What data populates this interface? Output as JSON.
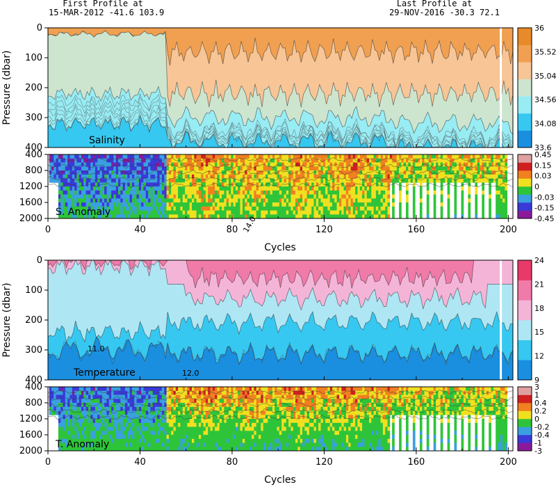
{
  "header": {
    "first_label": "First Profile at",
    "first_value": "15-MAR-2012   -41.6  103.9",
    "last_label": "Last Profile at",
    "last_value": "29-NOV-2016   -30.3   72.1"
  },
  "chart_data": [
    {
      "type": "heatmap",
      "title": "Salinity",
      "ylabel": "Pressure (dbar)",
      "xlim": [
        0,
        202
      ],
      "ylim": [
        400,
        0
      ],
      "yticks": [
        "0",
        "100",
        "200",
        "300",
        "400"
      ],
      "colorbar_ticks": [
        "36",
        "35.52",
        "35.04",
        "34.56",
        "34.08",
        "33.6"
      ],
      "colorbar_colors": [
        "#1a8fe0",
        "#36c8f0",
        "#98ecf4",
        "#cde5cf",
        "#f7c596",
        "#f0a050",
        "#e98a2a"
      ],
      "x_breaks": [
        0,
        52,
        55,
        80,
        140,
        175,
        202
      ],
      "segments": [
        {
          "x": [
            0,
            52
          ],
          "levels": [
            0.35,
            0.25,
            0.12
          ]
        },
        {
          "x": [
            52,
            80
          ],
          "levels": [
            0.78,
            0.7,
            0.62
          ]
        },
        {
          "x": [
            80,
            140
          ],
          "levels": [
            0.82,
            0.75,
            0.68
          ]
        },
        {
          "x": [
            140,
            175
          ],
          "levels": [
            0.7,
            0.62,
            0.55
          ]
        },
        {
          "x": [
            175,
            202
          ],
          "levels": [
            0.65,
            0.58,
            0.5
          ]
        }
      ]
    },
    {
      "type": "heatmap",
      "title": "S. Anomaly",
      "xlabel": "Cycles",
      "ylim": [
        2000,
        400
      ],
      "yticks": [
        "400",
        "800",
        "1200",
        "1600",
        "2000"
      ],
      "xticks": [
        "0",
        "40",
        "80",
        "120",
        "160",
        "200"
      ],
      "colorbar_ticks": [
        "0.45",
        "0.15",
        "0.03",
        "0",
        "-0.03",
        "-0.15",
        "-0.45"
      ],
      "colorbar_colors": [
        "#8a1a9a",
        "#3a3ad8",
        "#3aa0e0",
        "#2ec43a",
        "#f0e020",
        "#f08020",
        "#d02020",
        "#e0a0a0"
      ]
    },
    {
      "type": "heatmap",
      "title": "Temperature",
      "ylabel": "Pressure (dbar)",
      "ylim": [
        400,
        0
      ],
      "yticks": [
        "0",
        "100",
        "200",
        "300",
        "400"
      ],
      "colorbar_ticks": [
        "24",
        "21",
        "18",
        "15",
        "12",
        "9"
      ],
      "colorbar_colors": [
        "#1a8fe0",
        "#36c8f0",
        "#aee6f4",
        "#f4b4d8",
        "#f07aa8",
        "#e83a6a"
      ],
      "annotations": [
        "14.0",
        "12.0",
        "11.0"
      ]
    },
    {
      "type": "heatmap",
      "title": "T. Anomaly",
      "xlabel": "Cycles",
      "ylim": [
        2000,
        400
      ],
      "yticks": [
        "400",
        "800",
        "1200",
        "1600",
        "2000"
      ],
      "xticks": [
        "0",
        "40",
        "80",
        "120",
        "160",
        "200"
      ],
      "colorbar_ticks": [
        "3",
        "1",
        "0.4",
        "0.2",
        "0",
        "-0.2",
        "-0.4",
        "-1",
        "-3"
      ],
      "colorbar_colors": [
        "#8a1a9a",
        "#3a3ad8",
        "#3aa0e0",
        "#2ec43a",
        "#f0e020",
        "#f08020",
        "#d02020",
        "#e0a0a0"
      ]
    }
  ]
}
